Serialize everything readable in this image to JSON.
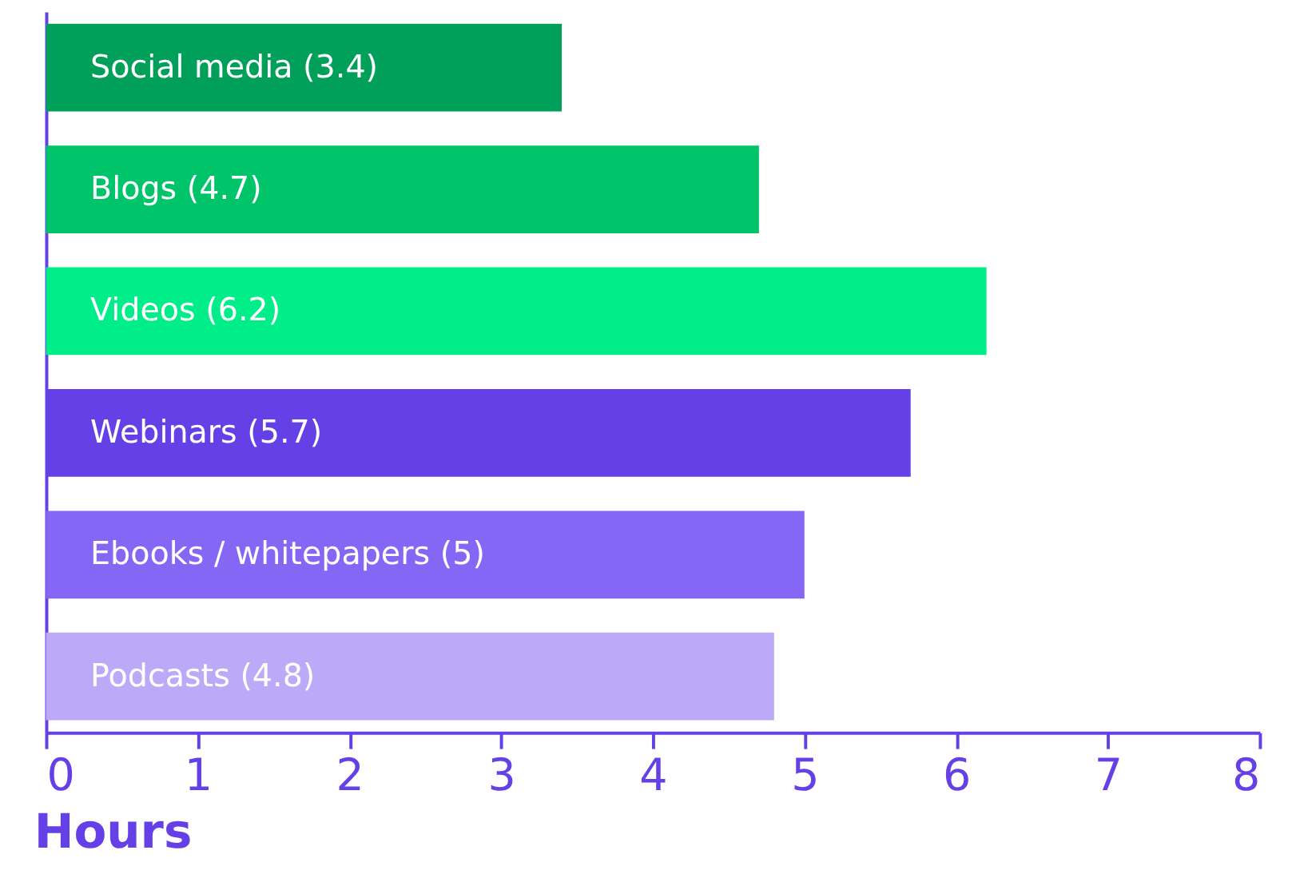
{
  "chart_data": {
    "type": "bar",
    "orientation": "horizontal",
    "xlabel": "Hours",
    "categories": [
      "Social media (3.4)",
      "Blogs  (4.7)",
      "Videos (6.2)",
      "Webinars (5.7)",
      "Ebooks / whitepapers (5)",
      "Podcasts (4.8)"
    ],
    "values": [
      3.4,
      4.7,
      6.2,
      5.7,
      5,
      4.8
    ],
    "colors": [
      "#00a05a",
      "#00c46a",
      "#00ee8a",
      "#6440e6",
      "#8566f5",
      "#bcaaf8"
    ],
    "xlim": [
      0,
      8
    ],
    "xticks": [
      0,
      1,
      2,
      3,
      4,
      5,
      6,
      7,
      8
    ],
    "grid": false,
    "tick_labels": "x"
  }
}
